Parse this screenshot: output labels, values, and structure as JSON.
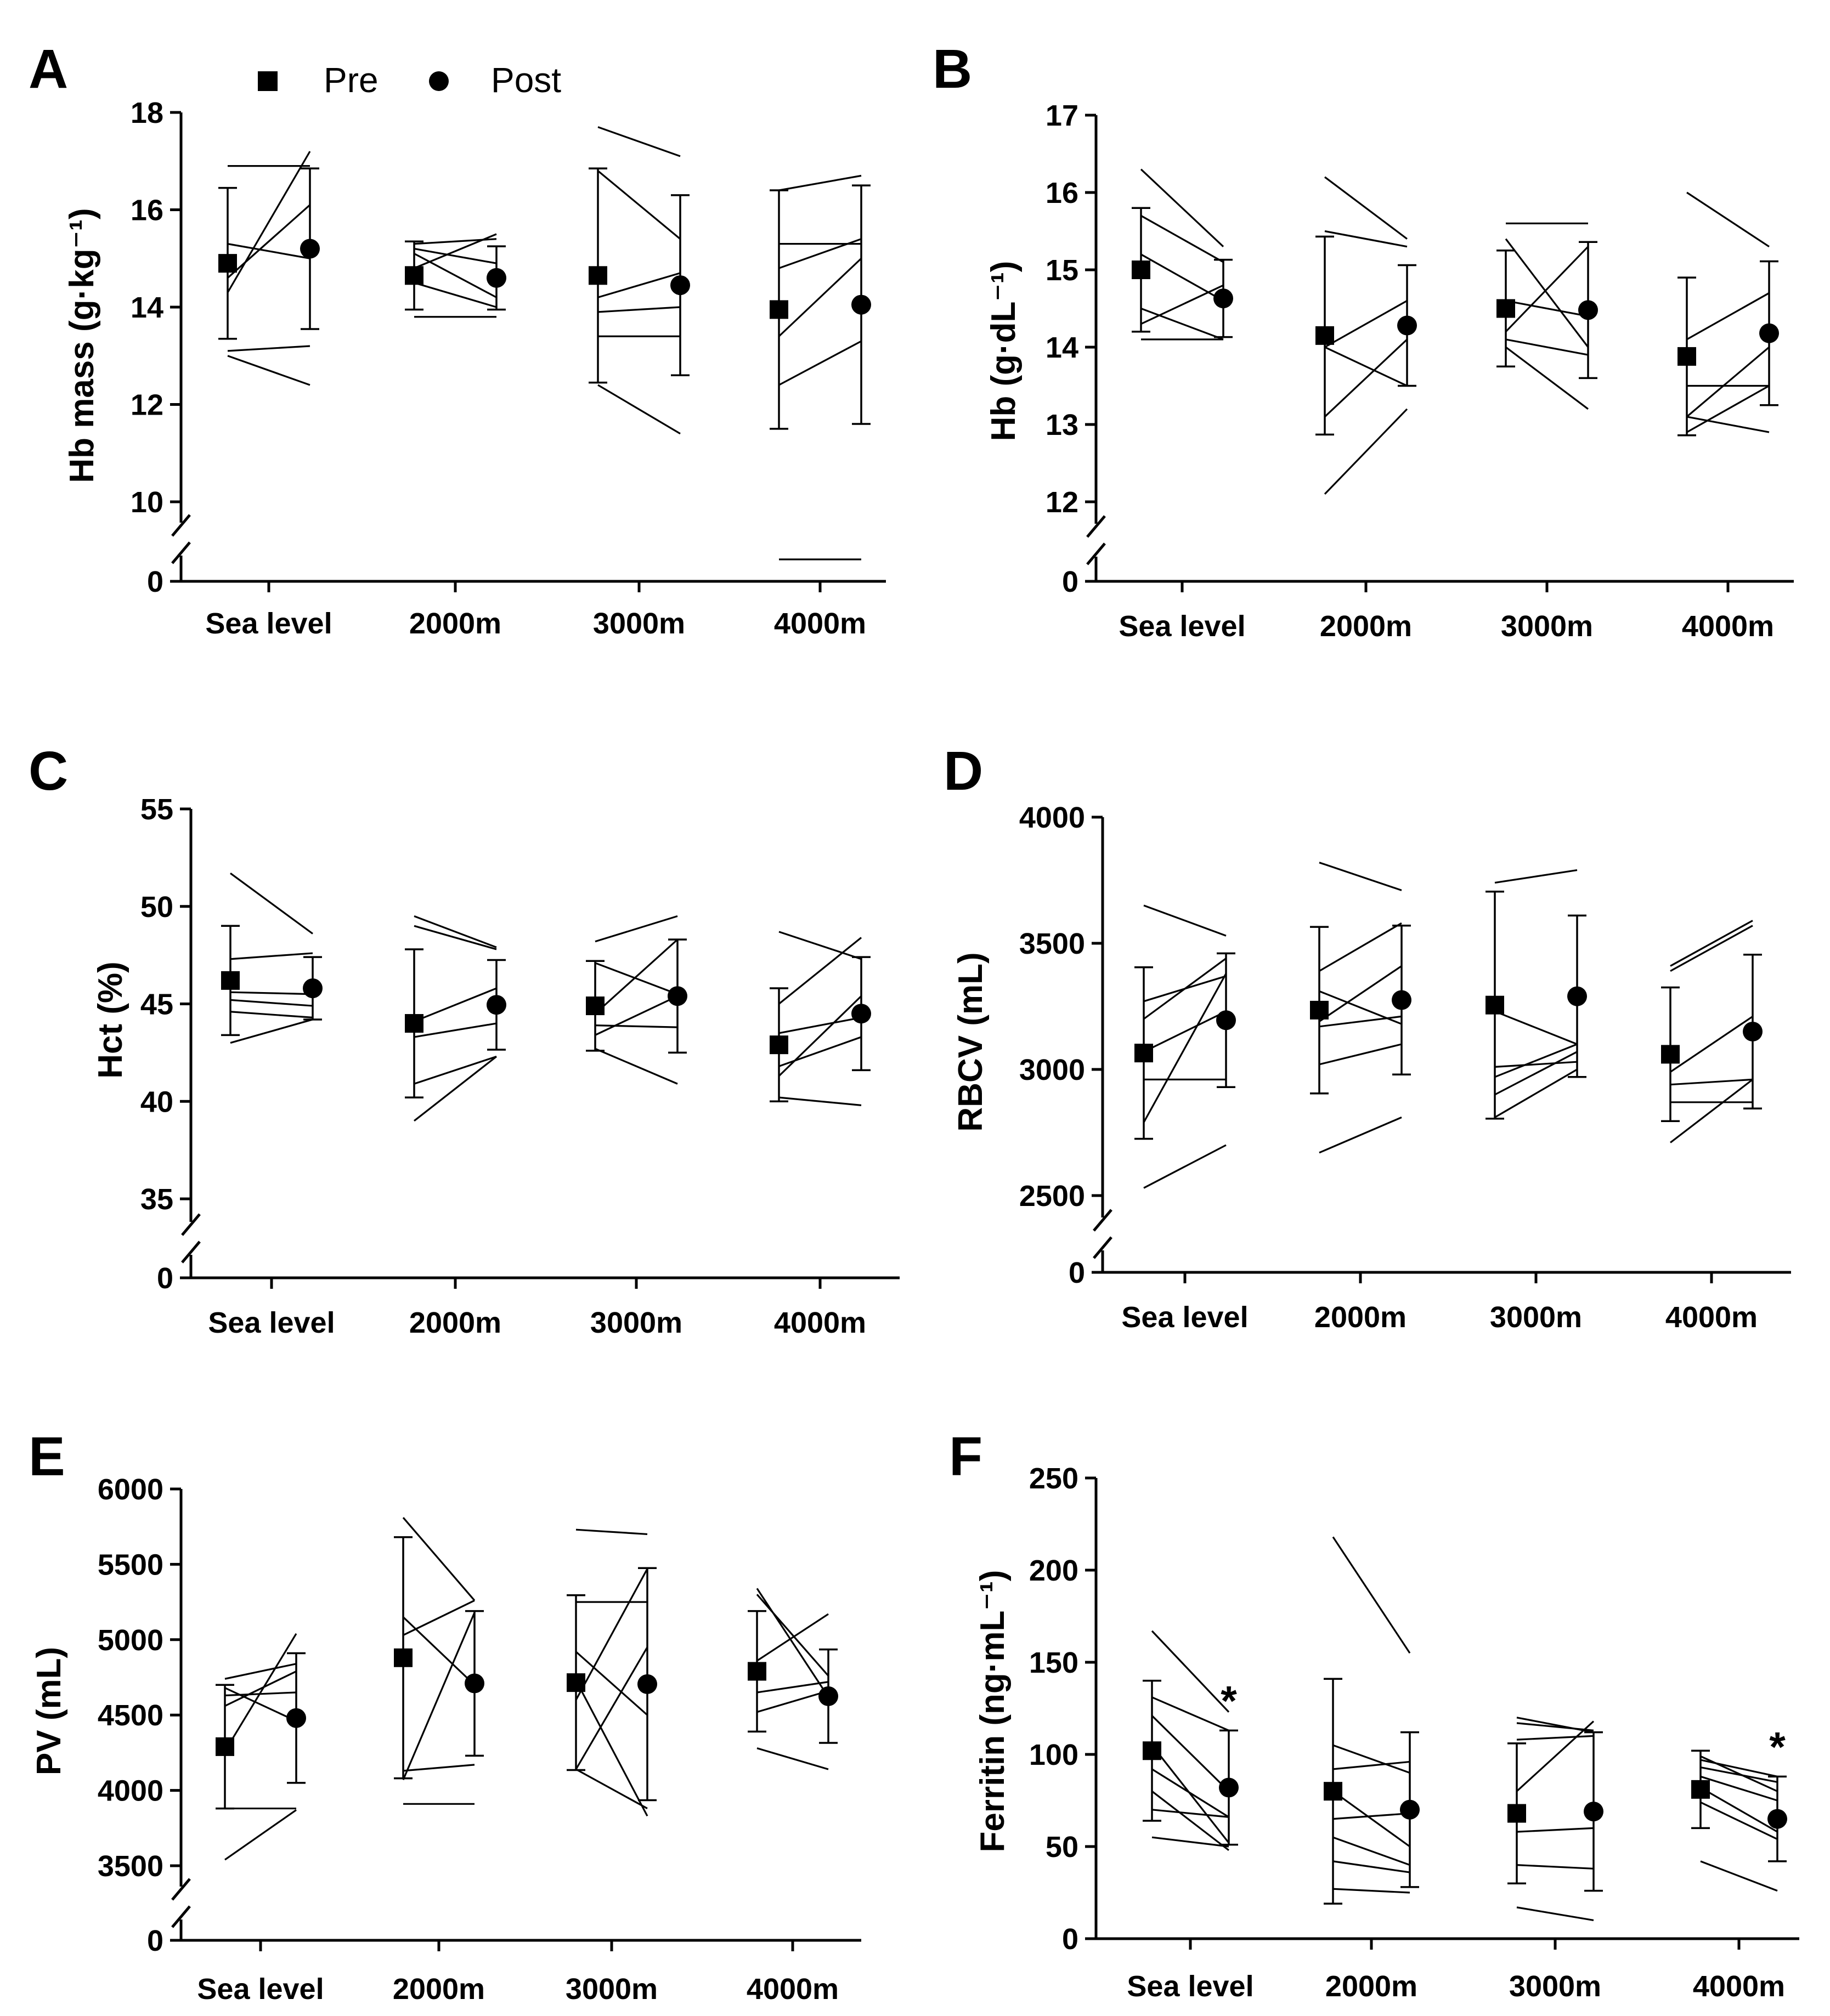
{
  "legend": {
    "pre": "Pre",
    "post": "Post"
  },
  "chart_data": [
    {
      "panel": "A",
      "type": "scatter",
      "ylabel": "Hb mass (g·kg⁻¹)",
      "categories": [
        "Sea level",
        "2000m",
        "3000m",
        "4000m"
      ],
      "yticks": [
        10,
        12,
        14,
        16,
        18
      ],
      "ylim": [
        10,
        18
      ],
      "broken_axis_zero": "0",
      "series": [
        {
          "name": "Pre",
          "mean": [
            14.9,
            14.65,
            14.65,
            13.95
          ],
          "sd": [
            1.55,
            0.7,
            2.2,
            2.45
          ]
        },
        {
          "name": "Post",
          "mean": [
            15.2,
            14.6,
            14.45,
            14.05
          ],
          "sd": [
            1.65,
            0.65,
            1.85,
            2.45
          ]
        }
      ],
      "individuals": [
        [
          [
            16.9,
            16.9
          ],
          [
            15.3,
            15.0
          ],
          [
            14.6,
            16.1
          ],
          [
            14.3,
            17.2
          ],
          [
            13.1,
            13.2
          ],
          [
            13.0,
            12.4
          ]
        ],
        [
          [
            15.3,
            15.4
          ],
          [
            15.2,
            14.9
          ],
          [
            15.1,
            14.2
          ],
          [
            14.8,
            15.5
          ],
          [
            14.5,
            14.0
          ],
          [
            13.8,
            13.8
          ]
        ],
        [
          [
            17.7,
            17.1
          ],
          [
            16.8,
            15.4
          ],
          [
            14.2,
            14.7
          ],
          [
            13.9,
            14.0
          ],
          [
            13.4,
            13.4
          ],
          [
            12.4,
            11.4
          ]
        ],
        [
          [
            16.4,
            16.7
          ],
          [
            15.3,
            15.3
          ],
          [
            14.8,
            15.4
          ],
          [
            13.4,
            15.0
          ],
          [
            12.4,
            13.3
          ],
          [
            2.65,
            2.6
          ]
        ]
      ],
      "stars": []
    },
    {
      "panel": "B",
      "type": "scatter",
      "ylabel": "Hb (g·dL⁻¹)",
      "categories": [
        "Sea level",
        "2000m",
        "3000m",
        "4000m"
      ],
      "yticks": [
        12,
        13,
        14,
        15,
        16,
        17
      ],
      "ylim": [
        12,
        17
      ],
      "broken_axis_zero": "0",
      "series": [
        {
          "name": "Pre",
          "mean": [
            15.0,
            14.15,
            14.5,
            13.88
          ],
          "sd": [
            0.8,
            1.28,
            0.75,
            1.02
          ]
        },
        {
          "name": "Post",
          "mean": [
            14.63,
            14.28,
            14.48,
            14.18
          ],
          "sd": [
            0.5,
            0.78,
            0.88,
            0.93
          ]
        }
      ],
      "individuals": [
        [
          [
            16.3,
            15.3
          ],
          [
            15.7,
            15.1
          ],
          [
            15.2,
            14.6
          ],
          [
            14.5,
            14.1
          ],
          [
            14.3,
            14.8
          ],
          [
            14.1,
            14.1
          ]
        ],
        [
          [
            16.2,
            15.4
          ],
          [
            15.5,
            15.3
          ],
          [
            14.0,
            14.6
          ],
          [
            14.0,
            13.5
          ],
          [
            13.1,
            14.1
          ],
          [
            12.1,
            13.2
          ]
        ],
        [
          [
            15.6,
            15.6
          ],
          [
            15.4,
            14.0
          ],
          [
            14.6,
            14.4
          ],
          [
            14.2,
            15.3
          ],
          [
            14.1,
            13.9
          ],
          [
            14.0,
            13.2
          ]
        ],
        [
          [
            16.0,
            15.3
          ],
          [
            14.1,
            14.7
          ],
          [
            13.5,
            13.5
          ],
          [
            13.1,
            14.0
          ],
          [
            12.9,
            13.5
          ],
          [
            13.1,
            12.9
          ]
        ]
      ],
      "stars": []
    },
    {
      "panel": "C",
      "type": "scatter",
      "ylabel": "Hct (%)",
      "categories": [
        "Sea level",
        "2000m",
        "3000m",
        "4000m"
      ],
      "yticks": [
        35,
        40,
        45,
        50,
        55
      ],
      "ylim": [
        35,
        55
      ],
      "broken_axis_zero": "0",
      "series": [
        {
          "name": "Pre",
          "mean": [
            46.2,
            44.0,
            44.9,
            42.9
          ],
          "sd": [
            2.8,
            3.8,
            2.3,
            2.9
          ]
        },
        {
          "name": "Post",
          "mean": [
            45.8,
            44.95,
            45.4,
            44.5
          ],
          "sd": [
            1.6,
            2.3,
            2.9,
            2.9
          ]
        }
      ],
      "individuals": [
        [
          [
            51.7,
            48.6
          ],
          [
            47.3,
            47.6
          ],
          [
            45.6,
            45.5
          ],
          [
            45.2,
            44.9
          ],
          [
            44.6,
            44.3
          ],
          [
            43.0,
            44.2
          ]
        ],
        [
          [
            49.5,
            47.9
          ],
          [
            49.0,
            47.8
          ],
          [
            44.1,
            45.8
          ],
          [
            43.3,
            44.0
          ],
          [
            40.9,
            42.3
          ],
          [
            39.0,
            42.3
          ]
        ],
        [
          [
            48.2,
            49.5
          ],
          [
            47.1,
            45.5
          ],
          [
            44.5,
            48.3
          ],
          [
            43.9,
            43.8
          ],
          [
            43.4,
            45.4
          ],
          [
            42.7,
            40.9
          ]
        ],
        [
          [
            48.7,
            47.3
          ],
          [
            45.0,
            48.4
          ],
          [
            43.5,
            44.3
          ],
          [
            41.8,
            43.3
          ],
          [
            41.3,
            45.4
          ],
          [
            40.2,
            39.8
          ]
        ]
      ],
      "stars": []
    },
    {
      "panel": "D",
      "type": "scatter",
      "ylabel": "RBCV (mL)",
      "categories": [
        "Sea level",
        "2000m",
        "3000m",
        "4000m"
      ],
      "yticks": [
        2500,
        3000,
        3500,
        4000
      ],
      "ylim": [
        2500,
        4000
      ],
      "broken_axis_zero": "0",
      "series": [
        {
          "name": "Pre",
          "mean": [
            3065,
            3235,
            3255,
            3060
          ],
          "sd": [
            340,
            330,
            450,
            265
          ]
        },
        {
          "name": "Post",
          "mean": [
            3195,
            3275,
            3290,
            3150
          ],
          "sd": [
            265,
            295,
            320,
            305
          ]
        }
      ],
      "individuals": [
        [
          [
            3650,
            3530
          ],
          [
            3270,
            3370
          ],
          [
            3200,
            3440
          ],
          [
            3070,
            3230
          ],
          [
            2960,
            2960
          ],
          [
            2790,
            3380
          ],
          [
            2530,
            2700
          ]
        ],
        [
          [
            3820,
            3710
          ],
          [
            3390,
            3580
          ],
          [
            3310,
            3180
          ],
          [
            3190,
            3410
          ],
          [
            3170,
            3210
          ],
          [
            3020,
            3100
          ],
          [
            2670,
            2810
          ]
        ],
        [
          [
            3740,
            3790
          ],
          [
            3230,
            3100
          ],
          [
            3010,
            3030
          ],
          [
            2970,
            3100
          ],
          [
            2900,
            3070
          ],
          [
            2810,
            3000
          ]
        ],
        [
          [
            3410,
            3590
          ],
          [
            3390,
            3570
          ],
          [
            2990,
            3210
          ],
          [
            2940,
            2960
          ],
          [
            2870,
            2870
          ],
          [
            2710,
            2960
          ]
        ]
      ],
      "stars": []
    },
    {
      "panel": "E",
      "type": "scatter",
      "ylabel": "PV (mL)",
      "categories": [
        "Sea level",
        "2000m",
        "3000m",
        "4000m"
      ],
      "yticks": [
        3500,
        4000,
        4500,
        5000,
        5500,
        6000
      ],
      "ylim": [
        3500,
        6000
      ],
      "broken_axis_zero": "0",
      "series": [
        {
          "name": "Pre",
          "mean": [
            4290,
            4880,
            4715,
            4790
          ],
          "sd": [
            410,
            800,
            580,
            400
          ]
        },
        {
          "name": "Post",
          "mean": [
            4480,
            4710,
            4705,
            4625
          ],
          "sd": [
            430,
            480,
            770,
            310
          ]
        }
      ],
      "individuals": [
        [
          [
            4740,
            4840
          ],
          [
            4680,
            4460
          ],
          [
            4630,
            4650
          ],
          [
            4560,
            4790
          ],
          [
            4260,
            5040
          ],
          [
            3880,
            3880
          ],
          [
            3540,
            3870
          ]
        ],
        [
          [
            5810,
            5260
          ],
          [
            5150,
            4700
          ],
          [
            5030,
            5260
          ],
          [
            4130,
            4170
          ],
          [
            4070,
            5180
          ],
          [
            3910,
            3910
          ]
        ],
        [
          [
            5730,
            5700
          ],
          [
            5250,
            5250
          ],
          [
            4920,
            4500
          ],
          [
            4730,
            3830
          ],
          [
            4600,
            5470
          ],
          [
            4140,
            4950
          ],
          [
            4140,
            3880
          ]
        ],
        [
          [
            5340,
            4620
          ],
          [
            5300,
            4760
          ],
          [
            4860,
            5170
          ],
          [
            4650,
            4720
          ],
          [
            4520,
            4660
          ],
          [
            4280,
            4140
          ]
        ]
      ],
      "stars": []
    },
    {
      "panel": "F",
      "type": "scatter",
      "ylabel": "Ferritin (ng·mL⁻¹)",
      "categories": [
        "Sea level",
        "2000m",
        "3000m",
        "4000m"
      ],
      "yticks": [
        0,
        50,
        100,
        150,
        200,
        250
      ],
      "ylim": [
        0,
        250
      ],
      "series": [
        {
          "name": "Pre",
          "mean": [
            102,
            80,
            68,
            81
          ],
          "sd": [
            38,
            61,
            38,
            21
          ]
        },
        {
          "name": "Post",
          "mean": [
            82,
            70,
            69,
            65
          ],
          "sd": [
            31,
            42,
            43,
            23
          ]
        }
      ],
      "individuals": [
        [
          [
            167,
            123
          ],
          [
            131,
            113
          ],
          [
            121,
            80
          ],
          [
            105,
            52
          ],
          [
            92,
            66
          ],
          [
            80,
            48
          ],
          [
            70,
            66
          ],
          [
            55,
            50
          ]
        ],
        [
          [
            218,
            155
          ],
          [
            105,
            90
          ],
          [
            92,
            96
          ],
          [
            80,
            50
          ],
          [
            65,
            68
          ],
          [
            55,
            40
          ],
          [
            42,
            36
          ],
          [
            27,
            25
          ]
        ],
        [
          [
            120,
            112
          ],
          [
            117,
            113
          ],
          [
            108,
            110
          ],
          [
            80,
            118
          ],
          [
            58,
            60
          ],
          [
            40,
            38
          ],
          [
            17,
            10
          ]
        ],
        [
          [
            99,
            80
          ],
          [
            97,
            88
          ],
          [
            93,
            85
          ],
          [
            88,
            75
          ],
          [
            82,
            58
          ],
          [
            74,
            54
          ],
          [
            42,
            26
          ]
        ]
      ],
      "stars": [
        "*",
        "",
        "",
        "*"
      ]
    }
  ]
}
